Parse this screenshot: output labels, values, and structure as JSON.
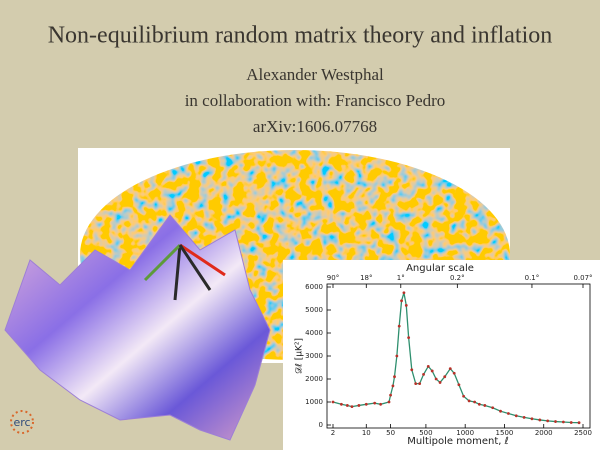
{
  "title": "Non-equilibrium random matrix theory and inflation",
  "authors": [
    "Alexander Westphal",
    "in collaboration with: Francisco Pedro",
    "arXiv:1606.07768"
  ],
  "logo": "erc",
  "chart_data": {
    "type": "line",
    "xlabel": "Multipole moment, ℓ",
    "x2label": "Angular scale",
    "ylabel": "𝒟ℓ [μK²]",
    "x": [
      2,
      3,
      4,
      5,
      7,
      10,
      15,
      20,
      30,
      50,
      80,
      100,
      130,
      160,
      190,
      220,
      250,
      280,
      320,
      370,
      420,
      470,
      530,
      580,
      630,
      680,
      740,
      810,
      860,
      920,
      980,
      1050,
      1120,
      1180,
      1250,
      1350,
      1450,
      1550,
      1650,
      1750,
      1850,
      1950,
      2050,
      2150,
      2250,
      2350,
      2450
    ],
    "values": [
      1000,
      900,
      850,
      800,
      850,
      900,
      950,
      900,
      1000,
      1300,
      1700,
      2100,
      3000,
      4300,
      5400,
      5750,
      5200,
      3800,
      2400,
      1800,
      1800,
      2200,
      2550,
      2350,
      2000,
      1850,
      2100,
      2450,
      2250,
      1750,
      1250,
      1050,
      1000,
      900,
      850,
      750,
      600,
      500,
      400,
      330,
      270,
      220,
      180,
      150,
      130,
      110,
      100
    ],
    "color": "#b8322a",
    "line_color": "#2e8f6e",
    "xlim": [
      2,
      2500
    ],
    "xscale": {
      "type": "log-linear",
      "split": 30
    },
    "xticks": [
      2,
      10,
      50,
      500,
      1000,
      1500,
      2000,
      2500
    ],
    "x2ticks": [
      {
        "value": 2,
        "label": "90°"
      },
      {
        "value": 10,
        "label": "18°"
      },
      {
        "value": 180,
        "label": "1°"
      },
      {
        "value": 900,
        "label": "0.2°"
      },
      {
        "value": 1850,
        "label": "0.1°"
      },
      {
        "value": 2500,
        "label": "0.07°"
      }
    ],
    "ylim": [
      0,
      6000
    ],
    "yticks": [
      0,
      1000,
      2000,
      3000,
      4000,
      5000,
      6000
    ]
  }
}
